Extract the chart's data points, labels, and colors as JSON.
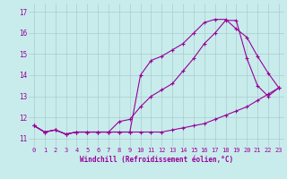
{
  "title": "",
  "xlabel": "Windchill (Refroidissement éolien,°C)",
  "ylabel": "",
  "bg_color": "#c8ecec",
  "line_color": "#990099",
  "grid_color": "#aacccc",
  "xlim": [
    -0.5,
    23.5
  ],
  "ylim": [
    10.6,
    17.4
  ],
  "yticks": [
    11,
    12,
    13,
    14,
    15,
    16,
    17
  ],
  "xticks": [
    0,
    1,
    2,
    3,
    4,
    5,
    6,
    7,
    8,
    9,
    10,
    11,
    12,
    13,
    14,
    15,
    16,
    17,
    18,
    19,
    20,
    21,
    22,
    23
  ],
  "series": [
    [
      11.6,
      11.3,
      11.4,
      11.2,
      11.3,
      11.3,
      11.3,
      11.3,
      11.3,
      11.3,
      11.3,
      11.3,
      11.3,
      11.4,
      11.5,
      11.6,
      11.7,
      11.9,
      12.1,
      12.3,
      12.5,
      12.8,
      13.1,
      13.4
    ],
    [
      11.6,
      11.3,
      11.4,
      11.2,
      11.3,
      11.3,
      11.3,
      11.3,
      11.8,
      11.9,
      12.5,
      13.0,
      13.3,
      13.6,
      14.2,
      14.8,
      15.5,
      16.0,
      16.6,
      16.6,
      14.8,
      13.5,
      13.0,
      13.4
    ],
    [
      11.6,
      11.3,
      11.4,
      11.2,
      11.3,
      11.3,
      11.3,
      11.3,
      11.3,
      11.3,
      14.0,
      14.7,
      14.9,
      15.2,
      15.5,
      16.0,
      16.5,
      16.65,
      16.65,
      16.2,
      15.8,
      14.9,
      14.1,
      13.4
    ]
  ],
  "tick_fontsize": 5,
  "xlabel_fontsize": 5.5
}
